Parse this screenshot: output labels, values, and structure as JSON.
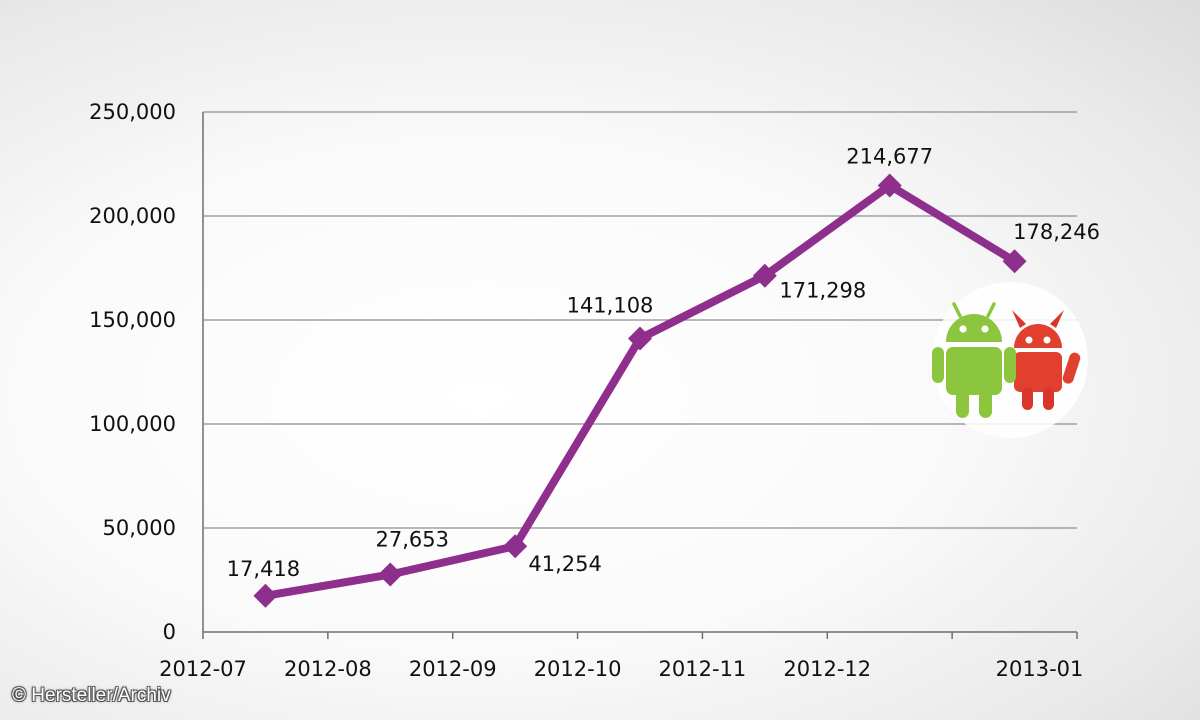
{
  "chart_data": {
    "type": "line",
    "title": "",
    "xlabel": "",
    "ylabel": "",
    "categories": [
      "2012-07",
      "2012-08",
      "2012-09",
      "2012-10",
      "2012-11",
      "2012-12",
      "2013-01"
    ],
    "yticks": [
      "0",
      "50,000",
      "100,000",
      "150,000",
      "200,000",
      "250,000"
    ],
    "ylim": [
      0,
      250000
    ],
    "grid": true,
    "legend": "none",
    "series": [
      {
        "values": [
          17418,
          27653,
          41254,
          141108,
          171298,
          214677,
          178246
        ],
        "labels": [
          "17,418",
          "27,653",
          "41,254",
          "141,108",
          "171,298",
          "214,677",
          "178,246"
        ],
        "color": "#8e2f8e",
        "marker": "diamond"
      }
    ]
  },
  "logo_icon": "android-malware-icon",
  "credit": "© Hersteller/Archiv"
}
